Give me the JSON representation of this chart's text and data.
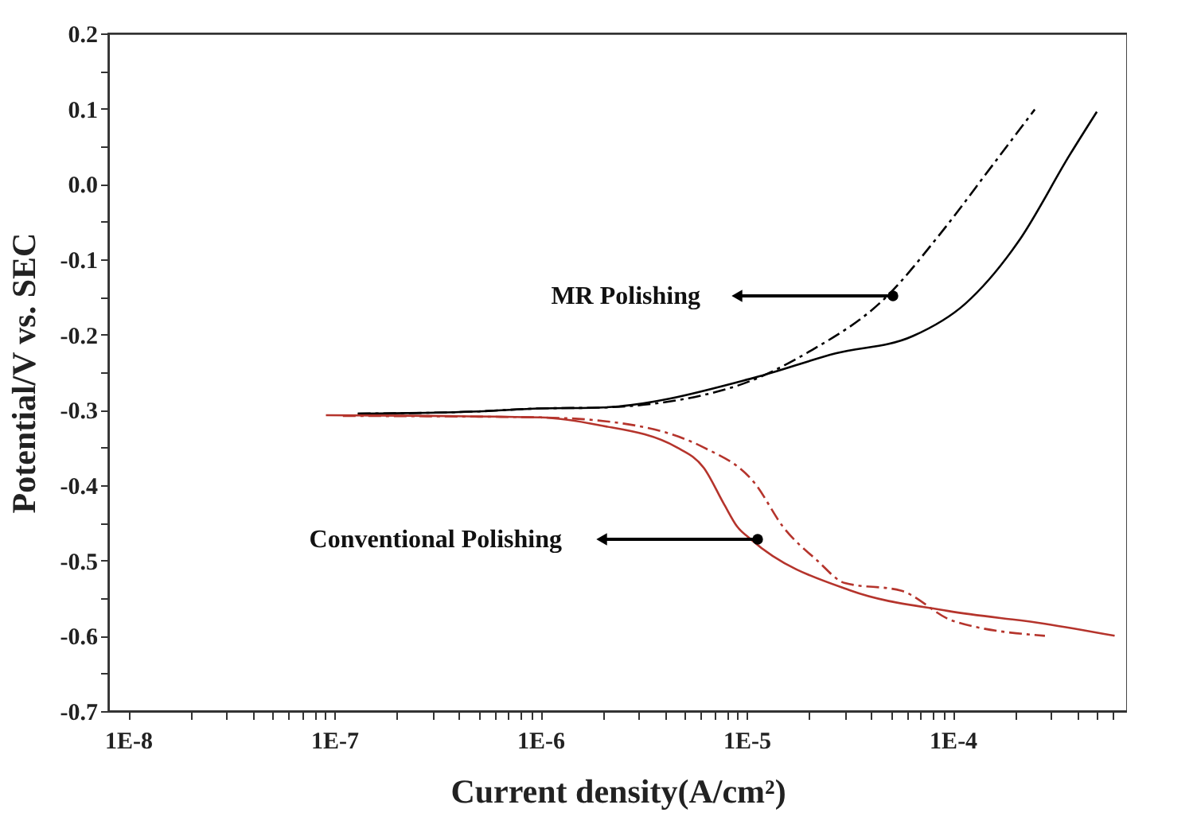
{
  "chart_data": {
    "type": "line",
    "xlabel": "Current density(A/cm²)",
    "ylabel": "Potential/V vs. SEC",
    "log": "x",
    "grid": false,
    "marker": "none",
    "xlim": [
      8e-09,
      0.0007
    ],
    "ylim": [
      -0.7,
      0.2
    ],
    "xticks": [
      {
        "value": 1e-08,
        "label": "1E-8"
      },
      {
        "value": 2e-08,
        "label": null
      },
      {
        "value": 3e-08,
        "label": null
      },
      {
        "value": 4e-08,
        "label": null
      },
      {
        "value": 5e-08,
        "label": null
      },
      {
        "value": 6e-08,
        "label": null
      },
      {
        "value": 7e-08,
        "label": null
      },
      {
        "value": 8e-08,
        "label": null
      },
      {
        "value": 9e-08,
        "label": null
      },
      {
        "value": 1e-07,
        "label": "1E-7"
      },
      {
        "value": 2e-07,
        "label": null
      },
      {
        "value": 3e-07,
        "label": null
      },
      {
        "value": 4e-07,
        "label": null
      },
      {
        "value": 5e-07,
        "label": null
      },
      {
        "value": 6e-07,
        "label": null
      },
      {
        "value": 7e-07,
        "label": null
      },
      {
        "value": 8e-07,
        "label": null
      },
      {
        "value": 9e-07,
        "label": null
      },
      {
        "value": 1e-06,
        "label": "1E-6"
      },
      {
        "value": 2e-06,
        "label": null
      },
      {
        "value": 3e-06,
        "label": null
      },
      {
        "value": 4e-06,
        "label": null
      },
      {
        "value": 5e-06,
        "label": null
      },
      {
        "value": 6e-06,
        "label": null
      },
      {
        "value": 7e-06,
        "label": null
      },
      {
        "value": 8e-06,
        "label": null
      },
      {
        "value": 9e-06,
        "label": null
      },
      {
        "value": 1e-05,
        "label": "1E-5"
      },
      {
        "value": 2e-05,
        "label": null
      },
      {
        "value": 3e-05,
        "label": null
      },
      {
        "value": 4e-05,
        "label": null
      },
      {
        "value": 5e-05,
        "label": null
      },
      {
        "value": 6e-05,
        "label": null
      },
      {
        "value": 7e-05,
        "label": null
      },
      {
        "value": 8e-05,
        "label": null
      },
      {
        "value": 9e-05,
        "label": null
      },
      {
        "value": 0.0001,
        "label": "1E-4"
      },
      {
        "value": 0.0002,
        "label": null
      },
      {
        "value": 0.0003,
        "label": null
      },
      {
        "value": 0.0004,
        "label": null
      },
      {
        "value": 0.0005,
        "label": null
      },
      {
        "value": 0.0006,
        "label": null
      }
    ],
    "yticks": [
      {
        "value": -0.7,
        "label": "-0.7"
      },
      {
        "value": -0.65,
        "label": null
      },
      {
        "value": -0.6,
        "label": "-0.6"
      },
      {
        "value": -0.55,
        "label": null
      },
      {
        "value": -0.5,
        "label": "-0.5"
      },
      {
        "value": -0.45,
        "label": null
      },
      {
        "value": -0.4,
        "label": "-0.4"
      },
      {
        "value": -0.35,
        "label": null
      },
      {
        "value": -0.3,
        "label": "-0.3"
      },
      {
        "value": -0.25,
        "label": null
      },
      {
        "value": -0.2,
        "label": "-0.2"
      },
      {
        "value": -0.15,
        "label": null
      },
      {
        "value": -0.1,
        "label": "-0.1"
      },
      {
        "value": -0.05,
        "label": null
      },
      {
        "value": 0,
        "label": "0.0"
      },
      {
        "value": 0.05,
        "label": null
      },
      {
        "value": 0.1,
        "label": "0.1"
      },
      {
        "value": 0.15,
        "label": null
      },
      {
        "value": 0.2,
        "label": "0.2"
      }
    ],
    "series": [
      {
        "color": "#000000",
        "line_style": "solid",
        "x": [
          1.3e-07,
          5e-07,
          1e-06,
          1.9e-06,
          1.1e-05,
          2.7e-05,
          6.4e-05,
          0.000115,
          0.00021,
          0.00037,
          0.0005
        ],
        "values": [
          -0.305,
          -0.302,
          -0.298,
          -0.297,
          -0.257,
          -0.225,
          -0.202,
          -0.159,
          -0.075,
          0.039,
          0.096
        ]
      },
      {
        "color": "#000000",
        "line_style": "dashed",
        "x": [
          1.3e-07,
          5e-07,
          1e-06,
          1.9e-06,
          8.3e-06,
          2e-05,
          4.8e-05,
          8.7e-05,
          0.000155,
          0.00025
        ],
        "values": [
          -0.305,
          -0.302,
          -0.298,
          -0.297,
          -0.271,
          -0.223,
          -0.149,
          -0.066,
          0.024,
          0.099
        ]
      },
      {
        "color": "#b5342c",
        "line_style": "solid",
        "x": [
          9.1e-08,
          3e-07,
          1e-06,
          1.9e-06,
          4.6e-06,
          6.2e-06,
          7.8e-06,
          9e-06,
          1.05e-05,
          3.2e-05,
          9.5e-05,
          0.00028,
          0.00061
        ],
        "values": [
          -0.307,
          -0.308,
          -0.31,
          -0.32,
          -0.35,
          -0.377,
          -0.426,
          -0.455,
          -0.472,
          -0.54,
          -0.567,
          -0.584,
          -0.6
        ]
      },
      {
        "color": "#b5342c",
        "line_style": "dashed",
        "x": [
          1.1e-07,
          5e-07,
          1e-06,
          1.9e-06,
          6.2e-06,
          1.1e-05,
          1.5e-05,
          2.2e-05,
          3e-05,
          5.6e-05,
          0.0001,
          0.00028
        ],
        "values": [
          -0.308,
          -0.309,
          -0.31,
          -0.314,
          -0.35,
          -0.398,
          -0.455,
          -0.5,
          -0.53,
          -0.54,
          -0.58,
          -0.6
        ]
      }
    ],
    "annotations": [
      "MR Polishing",
      "Conventional Polishing"
    ]
  }
}
